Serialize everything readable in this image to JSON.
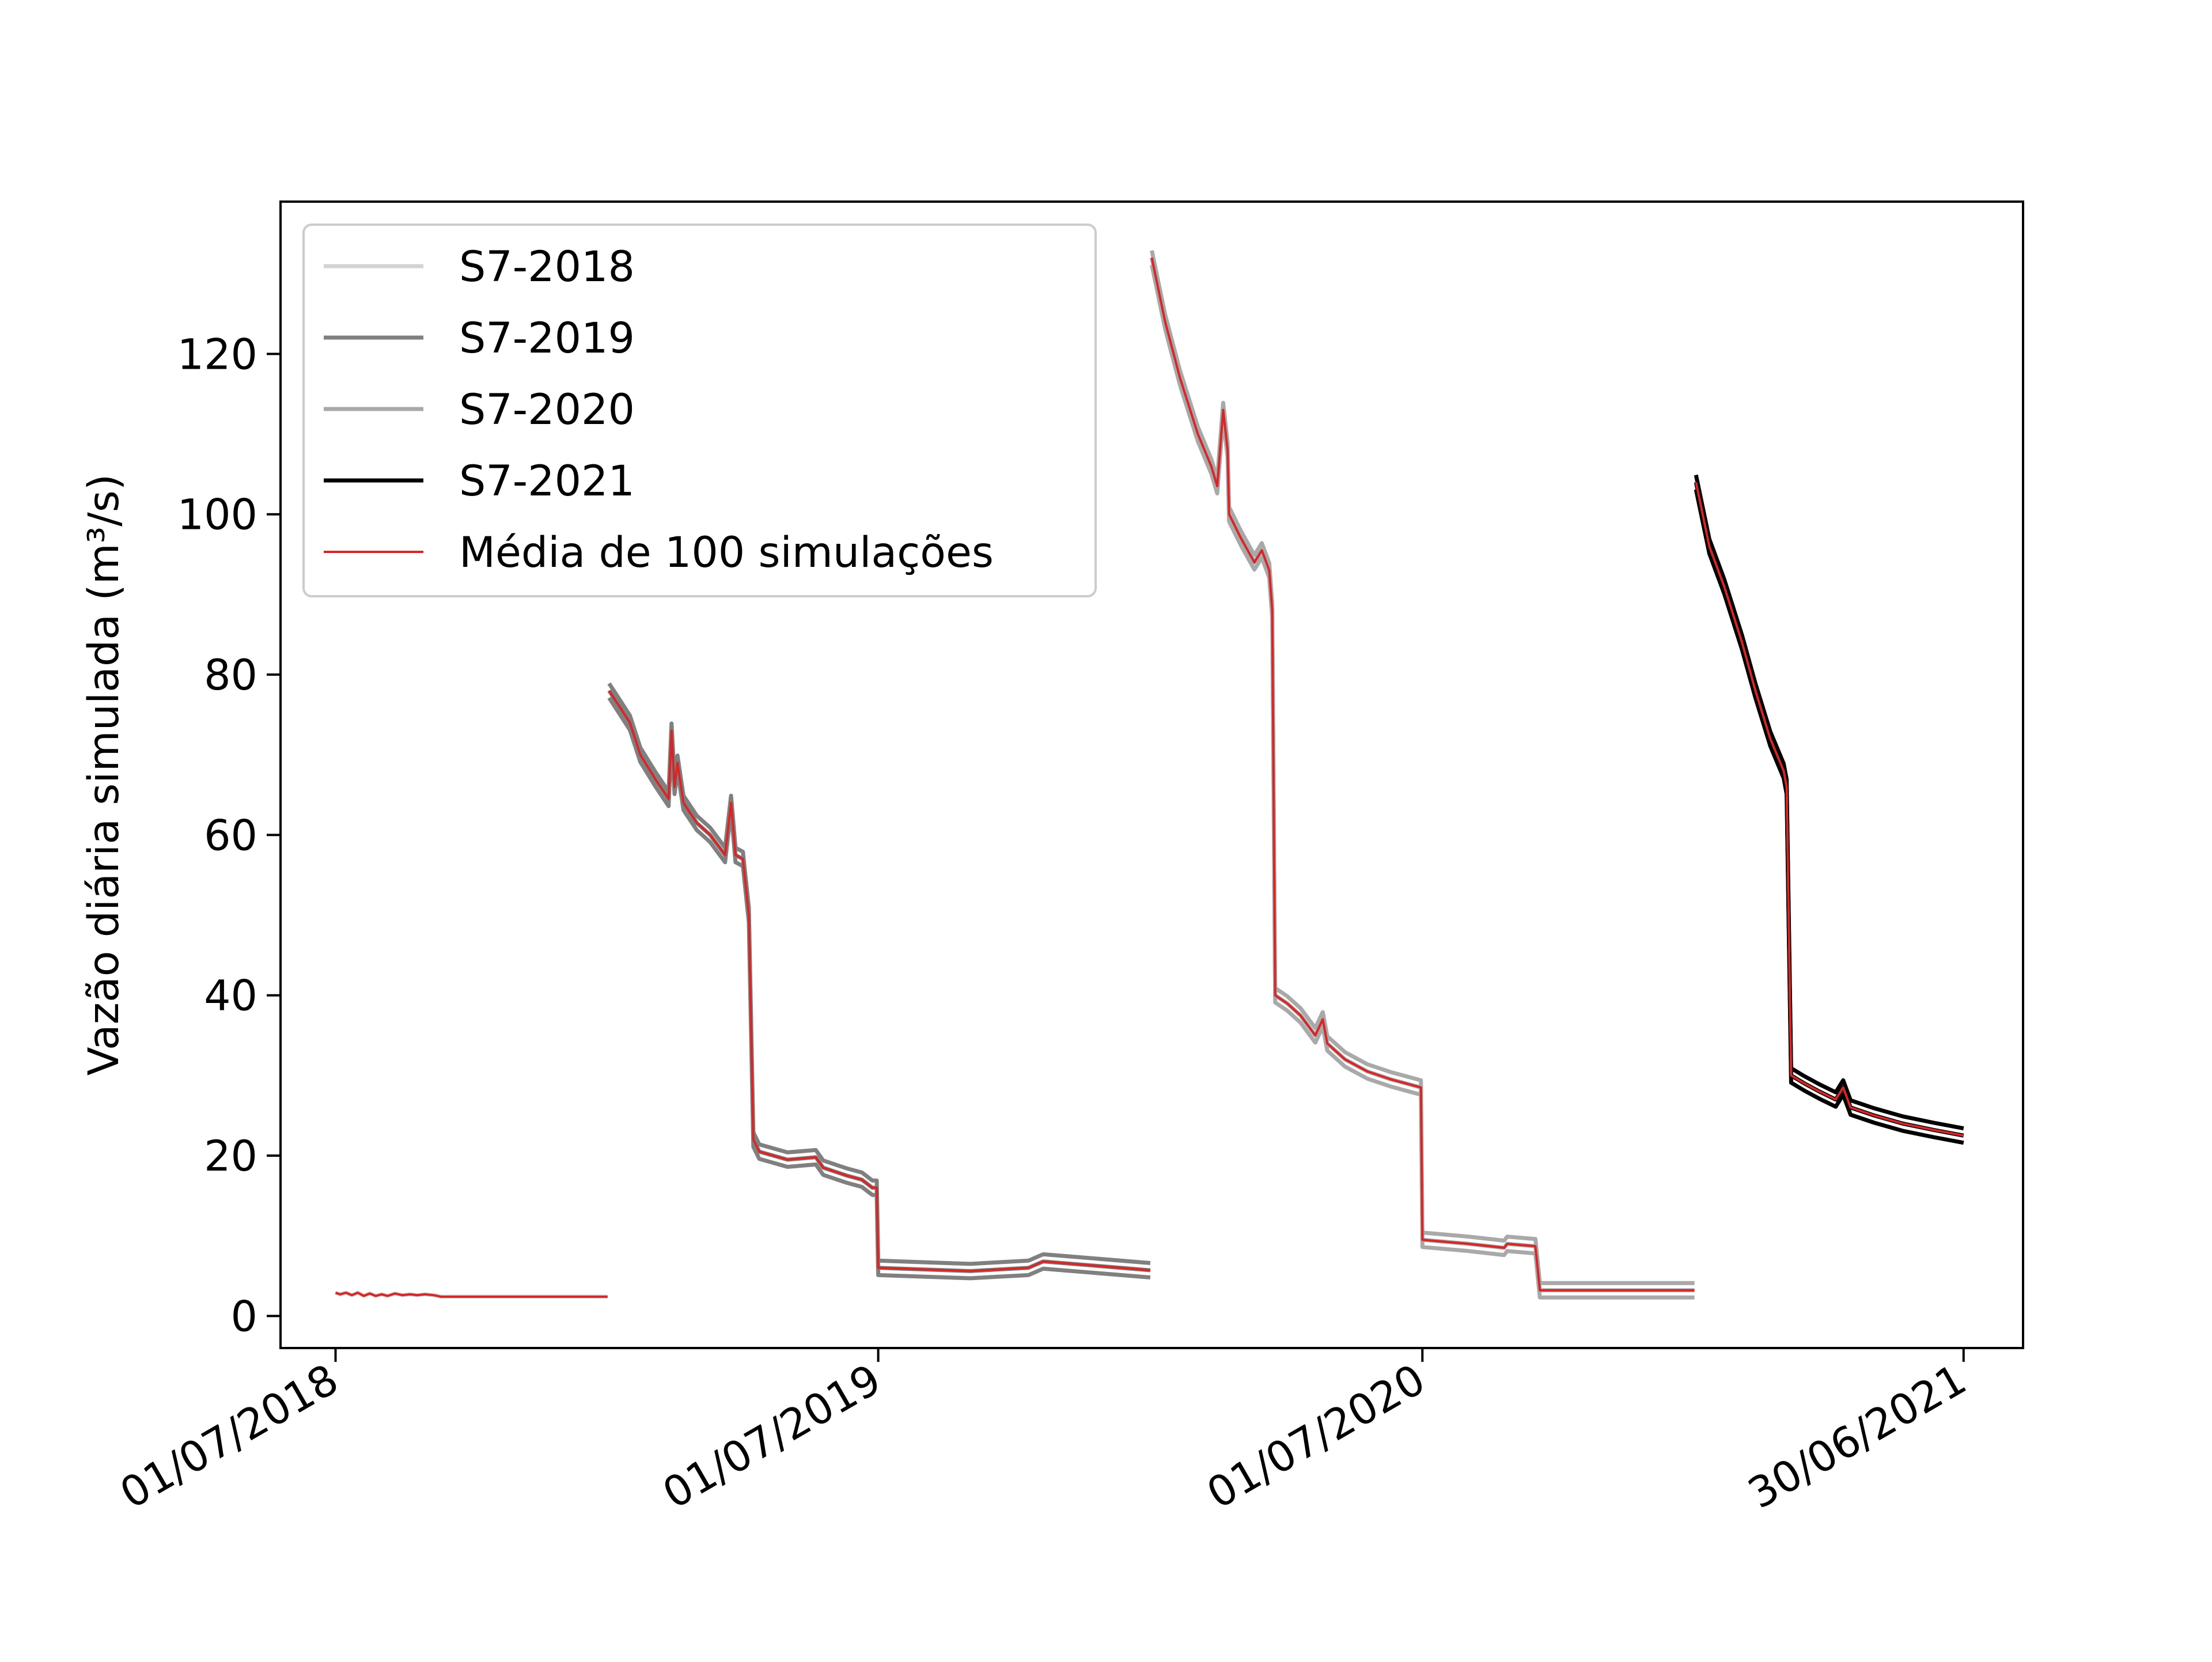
{
  "chart_data": {
    "type": "line",
    "title": "",
    "xlabel": "",
    "ylabel": "Vazão diária simulada (m³/s)",
    "xlim": [
      "2018-05-25",
      "2021-08-09"
    ],
    "ylim": [
      -4,
      139
    ],
    "x_ticks": [
      "01/07/2018",
      "01/07/2019",
      "01/07/2020",
      "30/06/2021"
    ],
    "x_tick_dates": [
      "2018-07-01",
      "2019-07-01",
      "2020-07-01",
      "2021-06-30"
    ],
    "y_ticks": [
      0,
      20,
      40,
      60,
      80,
      100,
      120
    ],
    "grid": false,
    "legend": {
      "placement": "upper-left",
      "entries": [
        "S7-2018",
        "S7-2019",
        "S7-2020",
        "S7-2021",
        "Média de 100 simulações"
      ]
    },
    "series": [
      {
        "name": "S7-2018",
        "color": "#d3d3d3",
        "band": false,
        "points": [
          [
            "2018-07-01",
            2.9
          ],
          [
            "2018-07-04",
            2.7
          ],
          [
            "2018-07-08",
            2.9
          ],
          [
            "2018-07-12",
            2.6
          ],
          [
            "2018-07-16",
            2.9
          ],
          [
            "2018-07-20",
            2.5
          ],
          [
            "2018-07-24",
            2.8
          ],
          [
            "2018-07-28",
            2.5
          ],
          [
            "2018-08-01",
            2.7
          ],
          [
            "2018-08-05",
            2.5
          ],
          [
            "2018-08-10",
            2.8
          ],
          [
            "2018-08-15",
            2.6
          ],
          [
            "2018-08-20",
            2.7
          ],
          [
            "2018-08-25",
            2.6
          ],
          [
            "2018-08-30",
            2.7
          ],
          [
            "2018-09-05",
            2.6
          ],
          [
            "2018-09-10",
            2.4
          ],
          [
            "2018-10-01",
            2.4
          ],
          [
            "2018-11-01",
            2.4
          ],
          [
            "2018-12-01",
            2.4
          ],
          [
            "2018-12-31",
            2.4
          ]
        ]
      },
      {
        "name": "S7-2019",
        "color": "#808080",
        "band": true,
        "points": [
          [
            "2019-01-01",
            78
          ],
          [
            "2019-01-08",
            76
          ],
          [
            "2019-01-15",
            74
          ],
          [
            "2019-01-22",
            70
          ],
          [
            "2019-02-01",
            67
          ],
          [
            "2019-02-10",
            64.5
          ],
          [
            "2019-02-12",
            73
          ],
          [
            "2019-02-14",
            66
          ],
          [
            "2019-02-16",
            69
          ],
          [
            "2019-02-20",
            64
          ],
          [
            "2019-03-01",
            61.5
          ],
          [
            "2019-03-10",
            60
          ],
          [
            "2019-03-20",
            57.5
          ],
          [
            "2019-03-24",
            64
          ],
          [
            "2019-03-27",
            57.5
          ],
          [
            "2019-04-01",
            57
          ],
          [
            "2019-04-05",
            50
          ],
          [
            "2019-04-08",
            22
          ],
          [
            "2019-04-12",
            20.5
          ],
          [
            "2019-05-01",
            19.5
          ],
          [
            "2019-05-20",
            19.8
          ],
          [
            "2019-05-25",
            18.5
          ],
          [
            "2019-06-10",
            17.5
          ],
          [
            "2019-06-20",
            17
          ],
          [
            "2019-06-27",
            16
          ],
          [
            "2019-06-30",
            16
          ],
          [
            "2019-07-01",
            6
          ],
          [
            "2019-08-01",
            5.8
          ],
          [
            "2019-09-01",
            5.6
          ],
          [
            "2019-09-20",
            5.8
          ],
          [
            "2019-10-10",
            6
          ],
          [
            "2019-10-20",
            6.8
          ],
          [
            "2019-12-31",
            5.7
          ]
        ]
      },
      {
        "name": "S7-2020",
        "color": "#a9a9a9",
        "band": true,
        "points": [
          [
            "2020-01-01",
            132
          ],
          [
            "2020-01-10",
            124
          ],
          [
            "2020-01-20",
            117
          ],
          [
            "2020-02-01",
            110
          ],
          [
            "2020-02-10",
            106
          ],
          [
            "2020-02-14",
            103.5
          ],
          [
            "2020-02-18",
            113
          ],
          [
            "2020-02-21",
            108
          ],
          [
            "2020-02-22",
            100
          ],
          [
            "2020-03-01",
            97
          ],
          [
            "2020-03-10",
            94
          ],
          [
            "2020-03-15",
            95.5
          ],
          [
            "2020-03-20",
            93
          ],
          [
            "2020-03-22",
            88
          ],
          [
            "2020-03-24",
            40
          ],
          [
            "2020-04-01",
            39
          ],
          [
            "2020-04-10",
            37.5
          ],
          [
            "2020-04-20",
            35
          ],
          [
            "2020-04-25",
            37
          ],
          [
            "2020-04-28",
            34
          ],
          [
            "2020-05-10",
            32
          ],
          [
            "2020-05-25",
            30.5
          ],
          [
            "2020-06-10",
            29.5
          ],
          [
            "2020-06-30",
            28.5
          ],
          [
            "2020-07-01",
            9.5
          ],
          [
            "2020-08-01",
            9
          ],
          [
            "2020-08-25",
            8.5
          ],
          [
            "2020-08-27",
            9
          ],
          [
            "2020-09-15",
            8.7
          ],
          [
            "2020-09-18",
            3.2
          ],
          [
            "2020-12-31",
            3.2
          ]
        ]
      },
      {
        "name": "S7-2021",
        "color": "#000000",
        "band": true,
        "points": [
          [
            "2021-01-01",
            104
          ],
          [
            "2021-01-10",
            96
          ],
          [
            "2021-01-20",
            91
          ],
          [
            "2021-02-01",
            84
          ],
          [
            "2021-02-10",
            78
          ],
          [
            "2021-02-20",
            72
          ],
          [
            "2021-03-01",
            68
          ],
          [
            "2021-03-03",
            66
          ],
          [
            "2021-03-06",
            30
          ],
          [
            "2021-03-15",
            29
          ],
          [
            "2021-03-25",
            28
          ],
          [
            "2021-04-05",
            27
          ],
          [
            "2021-04-10",
            28.5
          ],
          [
            "2021-04-15",
            26
          ],
          [
            "2021-05-01",
            25
          ],
          [
            "2021-05-20",
            24
          ],
          [
            "2021-06-10",
            23.2
          ],
          [
            "2021-06-30",
            22.5
          ]
        ]
      },
      {
        "name": "Média de 100 simulações",
        "color": "#d62728",
        "mean_of": [
          "S7-2018",
          "S7-2019",
          "S7-2020",
          "S7-2021"
        ]
      }
    ]
  }
}
